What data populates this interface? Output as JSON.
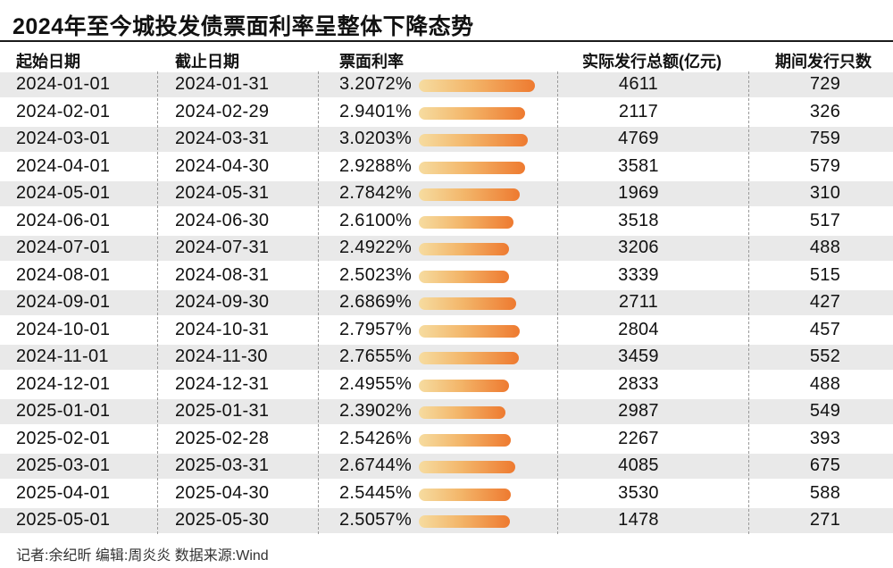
{
  "chart_data": {
    "type": "table",
    "title": "2024年至今城投发债票面利率呈整体下降态势",
    "columns": [
      "起始日期",
      "截止日期",
      "票面利率",
      "实际发行总额(亿元)",
      "期间发行只数"
    ],
    "rows": [
      {
        "start": "2024-01-01",
        "end": "2024-01-31",
        "rate": 3.2072,
        "rate_label": "3.2072%",
        "amount": "4611",
        "count": "729"
      },
      {
        "start": "2024-02-01",
        "end": "2024-02-29",
        "rate": 2.9401,
        "rate_label": "2.9401%",
        "amount": "2117",
        "count": "326"
      },
      {
        "start": "2024-03-01",
        "end": "2024-03-31",
        "rate": 3.0203,
        "rate_label": "3.0203%",
        "amount": "4769",
        "count": "759"
      },
      {
        "start": "2024-04-01",
        "end": "2024-04-30",
        "rate": 2.9288,
        "rate_label": "2.9288%",
        "amount": "3581",
        "count": "579"
      },
      {
        "start": "2024-05-01",
        "end": "2024-05-31",
        "rate": 2.7842,
        "rate_label": "2.7842%",
        "amount": "1969",
        "count": "310"
      },
      {
        "start": "2024-06-01",
        "end": "2024-06-30",
        "rate": 2.61,
        "rate_label": "2.6100%",
        "amount": "3518",
        "count": "517"
      },
      {
        "start": "2024-07-01",
        "end": "2024-07-31",
        "rate": 2.4922,
        "rate_label": "2.4922%",
        "amount": "3206",
        "count": "488"
      },
      {
        "start": "2024-08-01",
        "end": "2024-08-31",
        "rate": 2.5023,
        "rate_label": "2.5023%",
        "amount": "3339",
        "count": "515"
      },
      {
        "start": "2024-09-01",
        "end": "2024-09-30",
        "rate": 2.6869,
        "rate_label": "2.6869%",
        "amount": "2711",
        "count": "427"
      },
      {
        "start": "2024-10-01",
        "end": "2024-10-31",
        "rate": 2.7957,
        "rate_label": "2.7957%",
        "amount": "2804",
        "count": "457"
      },
      {
        "start": "2024-11-01",
        "end": "2024-11-30",
        "rate": 2.7655,
        "rate_label": "2.7655%",
        "amount": "3459",
        "count": "552"
      },
      {
        "start": "2024-12-01",
        "end": "2024-12-31",
        "rate": 2.4955,
        "rate_label": "2.4955%",
        "amount": "2833",
        "count": "488"
      },
      {
        "start": "2025-01-01",
        "end": "2025-01-31",
        "rate": 2.3902,
        "rate_label": "2.3902%",
        "amount": "2987",
        "count": "549"
      },
      {
        "start": "2025-02-01",
        "end": "2025-02-28",
        "rate": 2.5426,
        "rate_label": "2.5426%",
        "amount": "2267",
        "count": "393"
      },
      {
        "start": "2025-03-01",
        "end": "2025-03-31",
        "rate": 2.6744,
        "rate_label": "2.6744%",
        "amount": "4085",
        "count": "675"
      },
      {
        "start": "2025-04-01",
        "end": "2025-04-30",
        "rate": 2.5445,
        "rate_label": "2.5445%",
        "amount": "3530",
        "count": "588"
      },
      {
        "start": "2025-05-01",
        "end": "2025-05-30",
        "rate": 2.5057,
        "rate_label": "2.5057%",
        "amount": "1478",
        "count": "271"
      }
    ]
  },
  "footer": "记者:余纪昕   编辑:周炎炎   数据来源:Wind",
  "colors": {
    "bar_start": "#f6dca0",
    "bar_end": "#ee7a30",
    "stripe": "#e9e9e9",
    "title_rule": "#1a1a1a"
  }
}
